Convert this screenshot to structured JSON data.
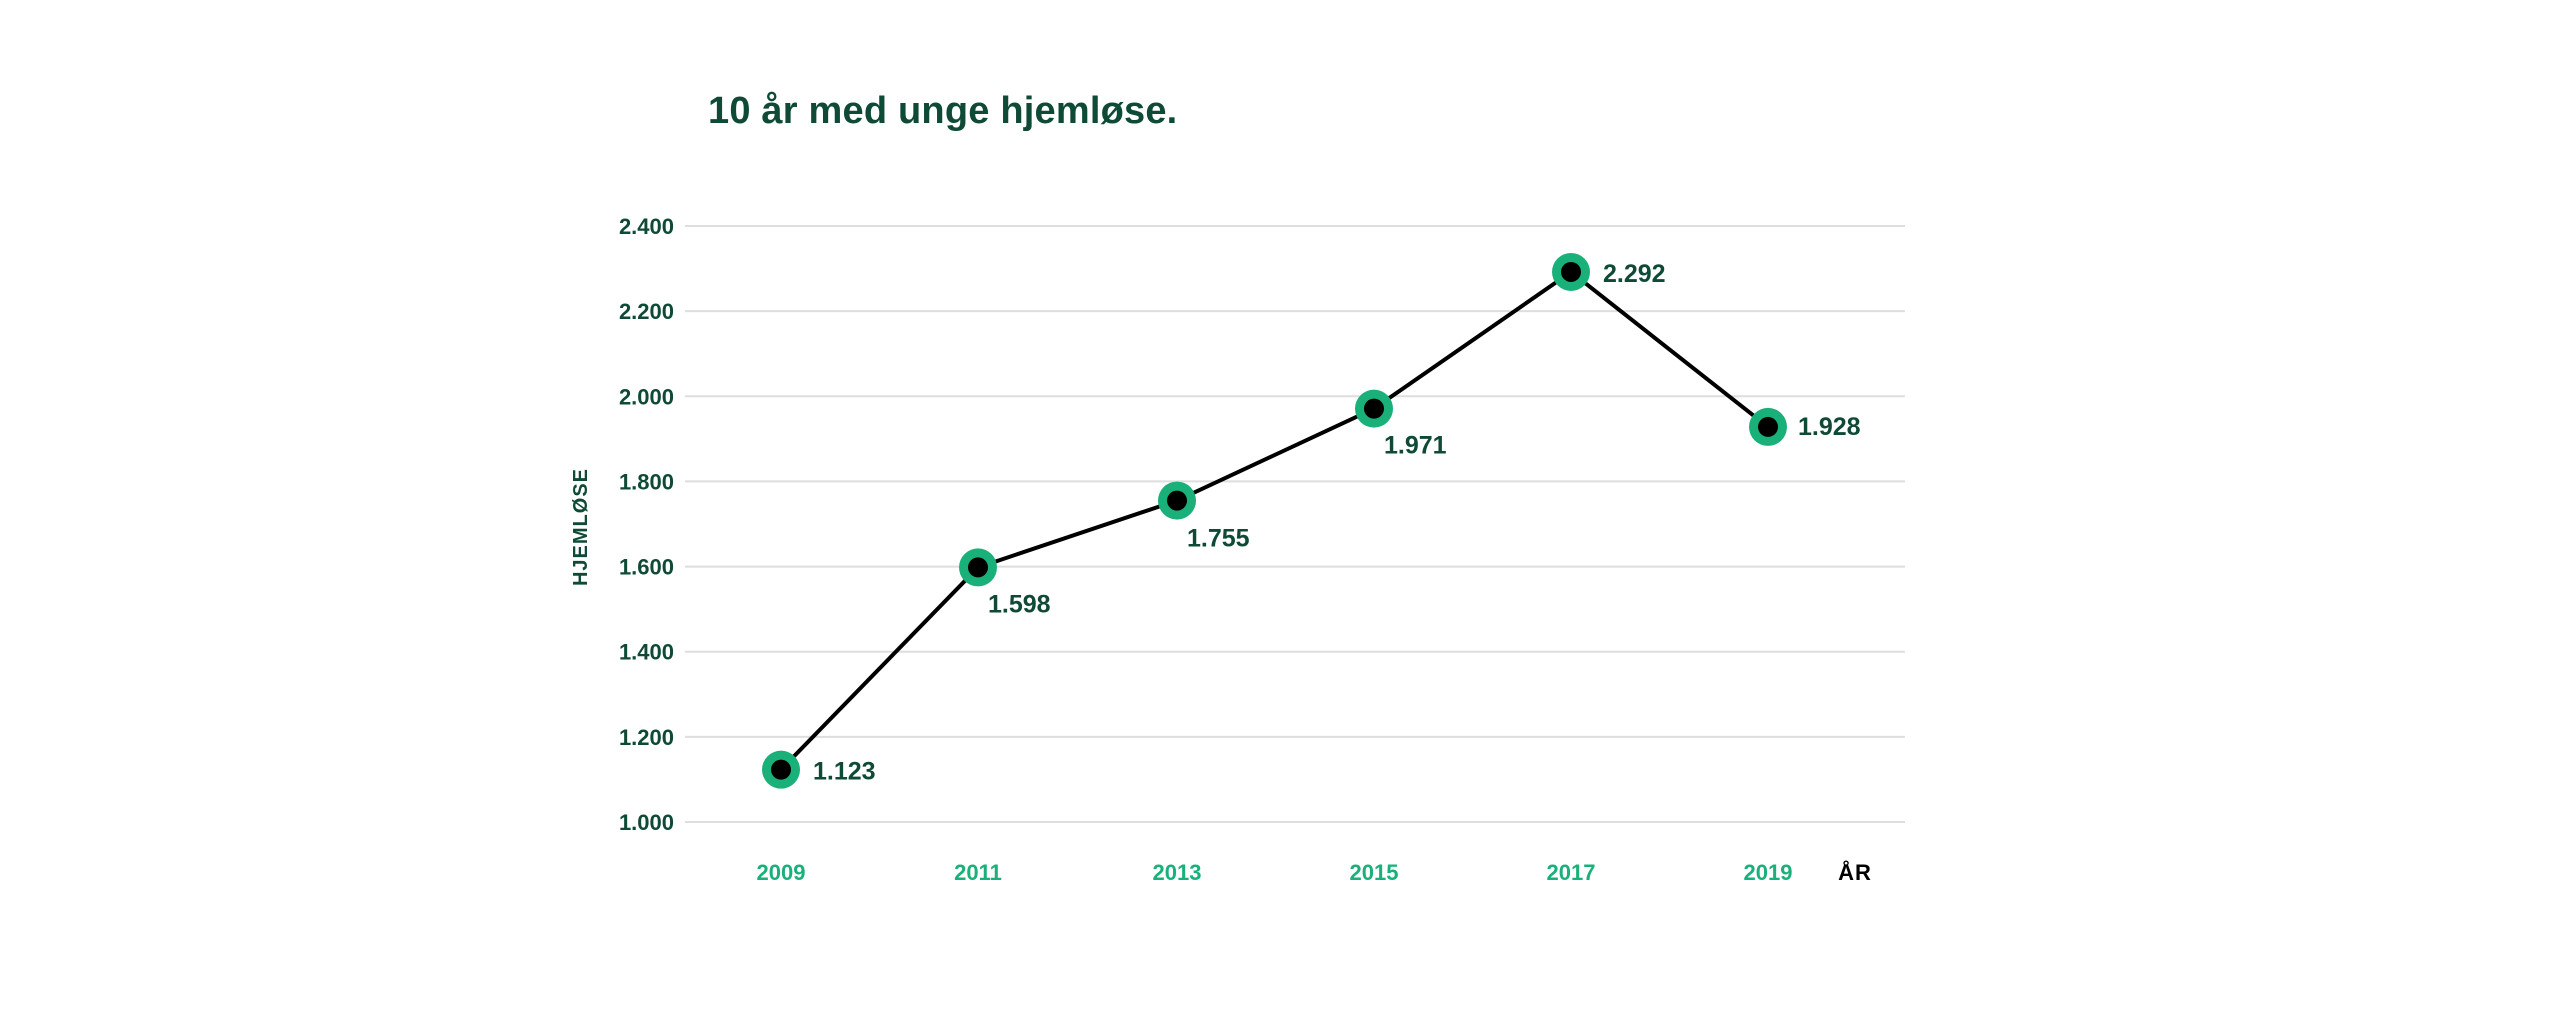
{
  "chart_data": {
    "type": "line",
    "title": "10 år med unge hjemløse.",
    "xlabel": "ÅR",
    "ylabel": "HJEMLØSE",
    "categories": [
      "2009",
      "2011",
      "2013",
      "2015",
      "2017",
      "2019"
    ],
    "series": [
      {
        "values": [
          1123,
          1598,
          1755,
          1971,
          2292,
          1928
        ],
        "value_labels": [
          "1.123",
          "1.598",
          "1.755",
          "1.971",
          "2.292",
          "1.928"
        ]
      }
    ],
    "ylim": [
      1000,
      2400
    ],
    "yticks": [
      1000,
      1200,
      1400,
      1600,
      1800,
      2000,
      2200,
      2400
    ],
    "ytick_labels": [
      "1.000",
      "1.200",
      "1.400",
      "1.600",
      "1.800",
      "2.000",
      "2.200",
      "2.400"
    ],
    "grid": true,
    "legend": "none",
    "colors": {
      "text": "#0f4a36",
      "accent": "#1ab07a",
      "line": "#000000",
      "marker_center": "#000000",
      "grid": "#dedede",
      "xlabel": "#000000"
    }
  }
}
